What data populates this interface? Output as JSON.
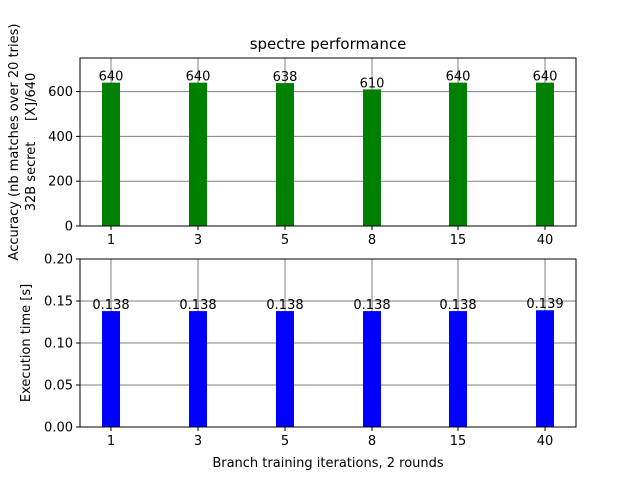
{
  "chart_data": [
    {
      "type": "bar",
      "title": "spectre performance",
      "xlabel": "",
      "ylabel_line1": "Accuracy (nb matches over 20 tries)",
      "ylabel_line2": "32B secret     [X]/640",
      "categories": [
        "1",
        "3",
        "5",
        "8",
        "15",
        "40"
      ],
      "values": [
        640,
        640,
        638,
        610,
        640,
        640
      ],
      "value_labels": [
        "640",
        "640",
        "638",
        "610",
        "640",
        "640"
      ],
      "ylim": [
        0,
        750
      ],
      "yticks": [
        0,
        200,
        400,
        600
      ],
      "ytick_labels": [
        "0",
        "200",
        "400",
        "600"
      ],
      "grid": true,
      "color": "#008000"
    },
    {
      "type": "bar",
      "title": "",
      "xlabel": "Branch training iterations, 2 rounds",
      "ylabel": "Execution time [s]",
      "categories": [
        "1",
        "3",
        "5",
        "8",
        "15",
        "40"
      ],
      "values": [
        0.138,
        0.138,
        0.138,
        0.138,
        0.138,
        0.139
      ],
      "value_labels": [
        "0.138",
        "0.138",
        "0.138",
        "0.138",
        "0.138",
        "0.139"
      ],
      "ylim": [
        0,
        0.2
      ],
      "yticks": [
        0,
        0.05,
        0.1,
        0.15,
        0.2
      ],
      "ytick_labels": [
        "0.00",
        "0.05",
        "0.10",
        "0.15",
        "0.20"
      ],
      "grid": true,
      "color": "#0000ff"
    }
  ]
}
